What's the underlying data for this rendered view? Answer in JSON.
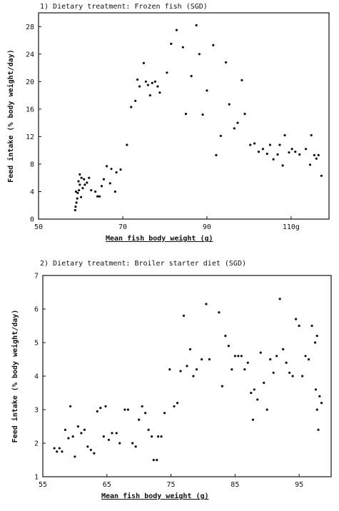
{
  "chart_data": [
    {
      "type": "scatter",
      "title": "1) Dietary treatment: Frozen fish (SGD)",
      "xlabel": "Mean fish body weight (g)",
      "ylabel": "Feed intake (% body weight/day)",
      "xlim": [
        50,
        119
      ],
      "ylim": [
        0,
        30
      ],
      "xticks": [
        50,
        70,
        90,
        110
      ],
      "xtick_labels": [
        "50",
        "70",
        "90",
        "110g"
      ],
      "yticks": [
        0,
        4,
        8,
        12,
        16,
        20,
        24,
        28
      ],
      "ytick_labels": [
        "0",
        "4",
        "8",
        "12",
        "16",
        "20",
        "24",
        "28"
      ],
      "grid": false,
      "points": [
        [
          58.7,
          1.3
        ],
        [
          58.8,
          1.8
        ],
        [
          59.0,
          2.4
        ],
        [
          59.2,
          3.0
        ],
        [
          58.9,
          4.0
        ],
        [
          59.3,
          3.8
        ],
        [
          59.6,
          4.2
        ],
        [
          59.8,
          5.0
        ],
        [
          59.5,
          5.5
        ],
        [
          59.8,
          6.5
        ],
        [
          60.2,
          6.0
        ],
        [
          60.5,
          4.5
        ],
        [
          60.1,
          3.2
        ],
        [
          60.8,
          5.8
        ],
        [
          61.0,
          5.0
        ],
        [
          61.5,
          5.3
        ],
        [
          62.0,
          6.0
        ],
        [
          62.5,
          4.2
        ],
        [
          63.5,
          4.0
        ],
        [
          64.0,
          3.3
        ],
        [
          64.5,
          3.3
        ],
        [
          65.0,
          4.8
        ],
        [
          65.5,
          5.8
        ],
        [
          66.2,
          7.7
        ],
        [
          67.0,
          5.2
        ],
        [
          67.3,
          7.3
        ],
        [
          68.2,
          4.0
        ],
        [
          68.5,
          6.8
        ],
        [
          69.5,
          7.2
        ],
        [
          71.0,
          10.8
        ],
        [
          72.0,
          16.3
        ],
        [
          73.0,
          17.2
        ],
        [
          73.5,
          20.3
        ],
        [
          74.0,
          19.3
        ],
        [
          75.0,
          22.7
        ],
        [
          75.5,
          20.0
        ],
        [
          76.0,
          19.5
        ],
        [
          76.5,
          18.0
        ],
        [
          77.0,
          19.8
        ],
        [
          77.7,
          20.0
        ],
        [
          78.3,
          19.3
        ],
        [
          78.8,
          18.4
        ],
        [
          80.5,
          21.3
        ],
        [
          81.5,
          25.5
        ],
        [
          82.8,
          27.5
        ],
        [
          84.3,
          25.0
        ],
        [
          85.0,
          15.3
        ],
        [
          86.3,
          20.8
        ],
        [
          87.5,
          28.2
        ],
        [
          88.2,
          24.0
        ],
        [
          89.0,
          15.2
        ],
        [
          90.0,
          18.7
        ],
        [
          91.5,
          25.3
        ],
        [
          92.2,
          9.3
        ],
        [
          93.3,
          12.1
        ],
        [
          94.5,
          22.8
        ],
        [
          95.3,
          16.7
        ],
        [
          96.5,
          13.2
        ],
        [
          97.3,
          14.0
        ],
        [
          98.3,
          20.2
        ],
        [
          99.0,
          15.3
        ],
        [
          100.3,
          10.8
        ],
        [
          101.3,
          11.0
        ],
        [
          102.3,
          9.8
        ],
        [
          103.3,
          10.2
        ],
        [
          104.3,
          9.5
        ],
        [
          105.0,
          10.8
        ],
        [
          105.8,
          8.7
        ],
        [
          106.8,
          9.4
        ],
        [
          107.3,
          10.8
        ],
        [
          108.0,
          7.8
        ],
        [
          108.5,
          12.2
        ],
        [
          109.5,
          9.7
        ],
        [
          110.2,
          10.2
        ],
        [
          111.0,
          9.8
        ],
        [
          112.0,
          9.4
        ],
        [
          113.5,
          10.2
        ],
        [
          114.5,
          7.9
        ],
        [
          114.8,
          12.2
        ],
        [
          115.5,
          9.3
        ],
        [
          116.0,
          8.8
        ],
        [
          116.5,
          9.3
        ],
        [
          117.2,
          6.3
        ]
      ]
    },
    {
      "type": "scatter",
      "title": "2) Dietary treatment: Broiler starter diet (SGD)",
      "xlabel": "Mean fish body weight (g)",
      "ylabel": "Feed intake (% body weight/day)",
      "xlim": [
        55,
        100
      ],
      "ylim": [
        1,
        7
      ],
      "xticks": [
        55,
        65,
        75,
        85,
        95
      ],
      "xtick_labels": [
        "55",
        "65",
        "75",
        "85",
        "95"
      ],
      "yticks": [
        1,
        2,
        3,
        4,
        5,
        6,
        7
      ],
      "ytick_labels": [
        "1",
        "2",
        "3",
        "4",
        "5",
        "6",
        "7"
      ],
      "grid": false,
      "points": [
        [
          56.8,
          1.85
        ],
        [
          57.2,
          1.75
        ],
        [
          57.6,
          1.85
        ],
        [
          58.0,
          1.75
        ],
        [
          58.5,
          2.4
        ],
        [
          59.0,
          2.15
        ],
        [
          59.3,
          3.1
        ],
        [
          59.7,
          2.2
        ],
        [
          60.0,
          1.6
        ],
        [
          60.5,
          2.5
        ],
        [
          61.0,
          2.3
        ],
        [
          61.5,
          2.4
        ],
        [
          62.0,
          1.9
        ],
        [
          62.5,
          1.8
        ],
        [
          63.0,
          1.7
        ],
        [
          63.5,
          2.95
        ],
        [
          64.0,
          3.05
        ],
        [
          64.5,
          2.2
        ],
        [
          64.8,
          3.1
        ],
        [
          65.3,
          2.1
        ],
        [
          65.8,
          2.3
        ],
        [
          66.5,
          2.3
        ],
        [
          67.0,
          2.0
        ],
        [
          67.8,
          3.0
        ],
        [
          68.3,
          3.0
        ],
        [
          69.0,
          2.0
        ],
        [
          69.5,
          1.9
        ],
        [
          70.0,
          2.7
        ],
        [
          70.5,
          3.1
        ],
        [
          71.0,
          2.9
        ],
        [
          71.5,
          2.4
        ],
        [
          72.0,
          2.2
        ],
        [
          72.3,
          1.5
        ],
        [
          72.8,
          1.5
        ],
        [
          73.0,
          2.2
        ],
        [
          73.5,
          2.2
        ],
        [
          74.0,
          2.9
        ],
        [
          74.8,
          4.2
        ],
        [
          75.5,
          3.1
        ],
        [
          76.0,
          3.2
        ],
        [
          76.5,
          4.15
        ],
        [
          77.0,
          5.8
        ],
        [
          77.5,
          4.3
        ],
        [
          78.0,
          4.8
        ],
        [
          78.5,
          4.0
        ],
        [
          79.0,
          4.2
        ],
        [
          79.8,
          4.5
        ],
        [
          80.5,
          6.15
        ],
        [
          81.0,
          4.5
        ],
        [
          82.5,
          5.9
        ],
        [
          83.0,
          3.7
        ],
        [
          83.5,
          5.2
        ],
        [
          84.0,
          4.9
        ],
        [
          84.5,
          4.2
        ],
        [
          85.0,
          4.6
        ],
        [
          85.5,
          4.6
        ],
        [
          86.0,
          4.6
        ],
        [
          86.5,
          4.2
        ],
        [
          87.0,
          4.4
        ],
        [
          87.5,
          3.5
        ],
        [
          87.8,
          2.7
        ],
        [
          88.0,
          3.6
        ],
        [
          88.5,
          3.3
        ],
        [
          89.0,
          4.7
        ],
        [
          89.5,
          3.8
        ],
        [
          90.0,
          3.0
        ],
        [
          90.5,
          4.5
        ],
        [
          91.0,
          4.1
        ],
        [
          91.5,
          4.6
        ],
        [
          92.0,
          6.3
        ],
        [
          92.5,
          4.8
        ],
        [
          93.0,
          4.4
        ],
        [
          93.5,
          4.1
        ],
        [
          94.0,
          4.0
        ],
        [
          94.5,
          5.7
        ],
        [
          95.0,
          5.5
        ],
        [
          95.5,
          4.0
        ],
        [
          96.0,
          4.6
        ],
        [
          96.5,
          4.5
        ],
        [
          97.0,
          5.5
        ],
        [
          97.5,
          5.0
        ],
        [
          97.8,
          5.2
        ],
        [
          97.6,
          3.6
        ],
        [
          97.8,
          3.0
        ],
        [
          98.0,
          2.4
        ],
        [
          98.2,
          3.4
        ],
        [
          98.5,
          3.2
        ]
      ]
    }
  ]
}
